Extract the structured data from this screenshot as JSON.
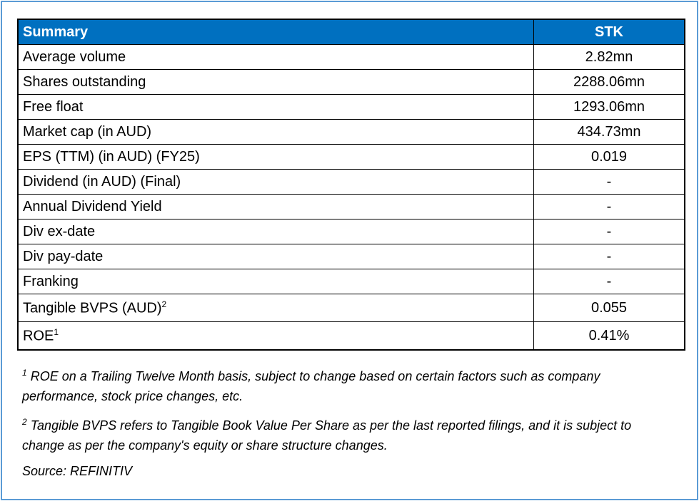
{
  "table": {
    "header": [
      "Summary",
      "STK"
    ],
    "rows": [
      {
        "label": "Average volume",
        "value": "2.82mn"
      },
      {
        "label": "Shares outstanding",
        "value": "2288.06mn"
      },
      {
        "label": "Free float",
        "value": "1293.06mn"
      },
      {
        "label": "Market cap (in AUD)",
        "value": "434.73mn"
      },
      {
        "label": "EPS (TTM) (in AUD) (FY25)",
        "value": "0.019"
      },
      {
        "label": "Dividend (in AUD) (Final)",
        "value": "-"
      },
      {
        "label": "Annual Dividend Yield",
        "value": "-"
      },
      {
        "label": "Div ex-date",
        "value": "-"
      },
      {
        "label": "Div pay-date",
        "value": "-"
      },
      {
        "label": "Franking",
        "value": "-"
      },
      {
        "label": "Tangible BVPS (AUD)",
        "note": "2",
        "value": "0.055"
      },
      {
        "label": "ROE",
        "note": "1",
        "value": "0.41%"
      }
    ]
  },
  "footnotes": [
    {
      "mark": "1",
      "text": "ROE on a Trailing Twelve Month basis, subject to change based on certain factors such as company performance, stock price changes, etc."
    },
    {
      "mark": "2",
      "text": "Tangible BVPS refers to Tangible Book Value Per Share as per the last reported filings, and it is subject to change as per the company's equity or share structure changes."
    }
  ],
  "source": "Source: REFINITIV"
}
